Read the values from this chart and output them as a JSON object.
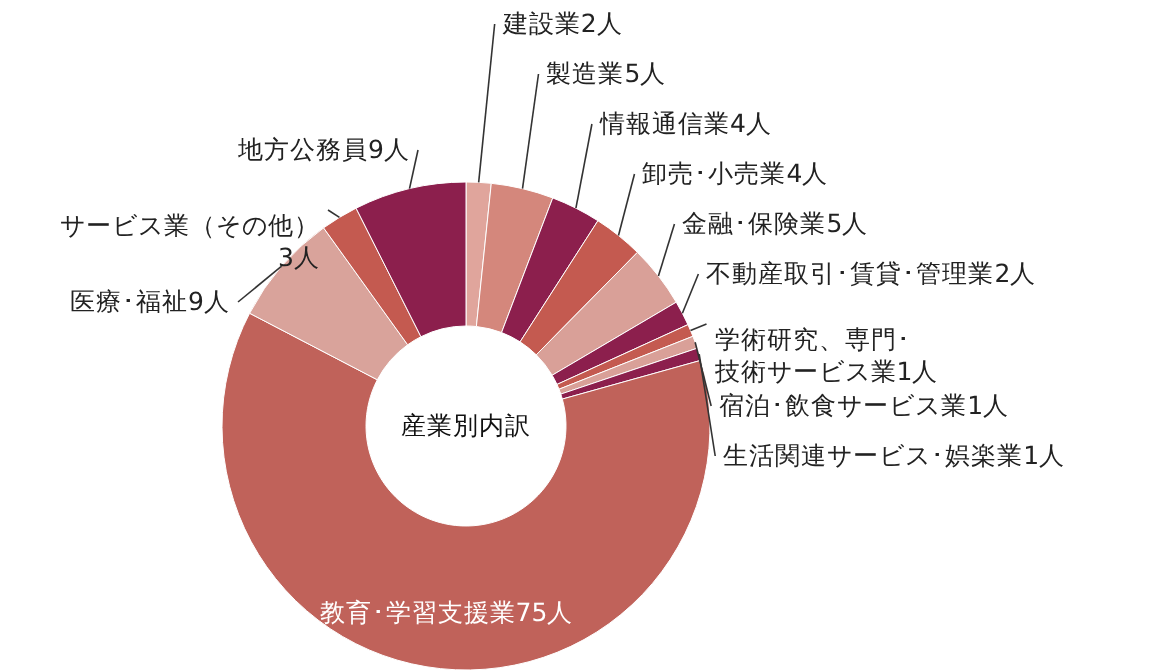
{
  "chart_data": {
    "type": "donut",
    "title": "産業別内訳",
    "categories": [
      "建設業2人",
      "製造業5人",
      "情報通信業4人",
      "卸売･小売業4人",
      "金融･保険業5人",
      "不動産取引･賃貸･管理業2人",
      "学術研究、専門･技術サービス業1人",
      "宿泊･飲食サービス業1人",
      "生活関連サービス･娯楽業1人",
      "教育･学習支援業75人",
      "医療･福祉9人",
      "サービス業（その他）3人",
      "地方公務員9人"
    ],
    "values": [
      2,
      5,
      4,
      4,
      5,
      2,
      1,
      1,
      1,
      75,
      9,
      3,
      9
    ],
    "colors": [
      "#e0a59c",
      "#d4877c",
      "#8c1f4d",
      "#c45a50",
      "#d9a098",
      "#8c1f4d",
      "#c45a50",
      "#d9a098",
      "#8c1f4d",
      "#c0625a",
      "#d9a39b",
      "#c45a50",
      "#8c1f4d"
    ]
  }
}
